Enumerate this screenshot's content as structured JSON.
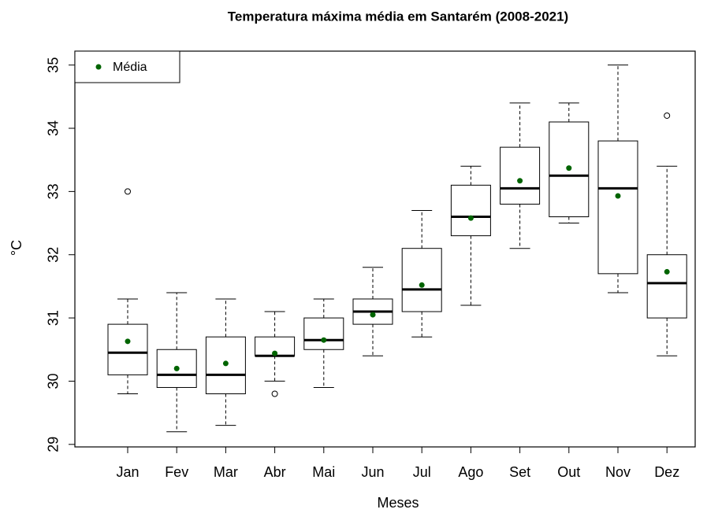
{
  "chart_data": {
    "type": "boxplot",
    "title": "Temperatura máxima média em Santarém (2008-2021)",
    "xlabel": "Meses",
    "ylabel": "°C",
    "categories": [
      "Jan",
      "Fev",
      "Mar",
      "Abr",
      "Mai",
      "Jun",
      "Jul",
      "Ago",
      "Set",
      "Out",
      "Nov",
      "Dez"
    ],
    "min": [
      29.8,
      29.2,
      29.3,
      30.0,
      29.9,
      30.4,
      30.7,
      31.2,
      32.1,
      32.5,
      31.4,
      30.4
    ],
    "q1": [
      30.1,
      29.9,
      29.8,
      30.4,
      30.5,
      30.9,
      31.1,
      32.3,
      32.8,
      32.6,
      31.7,
      31.0
    ],
    "median": [
      30.45,
      30.1,
      30.1,
      30.4,
      30.65,
      31.1,
      31.45,
      32.6,
      33.05,
      33.25,
      33.05,
      31.55
    ],
    "q3": [
      30.9,
      30.5,
      30.7,
      30.7,
      31.0,
      31.3,
      32.1,
      33.1,
      33.7,
      34.1,
      33.8,
      32.0
    ],
    "max": [
      31.3,
      31.4,
      31.3,
      31.1,
      31.3,
      31.8,
      32.7,
      33.4,
      34.4,
      34.4,
      35.0,
      33.4
    ],
    "outliers": [
      [
        33.0
      ],
      [],
      [],
      [
        29.8
      ],
      [],
      [],
      [],
      [],
      [],
      [],
      [],
      [
        34.2
      ]
    ],
    "mean": {
      "name": "Média",
      "color": "#006400",
      "values": [
        30.63,
        30.2,
        30.28,
        30.44,
        30.65,
        31.05,
        31.52,
        32.58,
        33.17,
        33.37,
        32.93,
        31.73
      ]
    },
    "ylim": [
      28.96,
      35.22
    ],
    "yticks": [
      29,
      30,
      31,
      32,
      33,
      34,
      35
    ],
    "legend": "topleft"
  }
}
